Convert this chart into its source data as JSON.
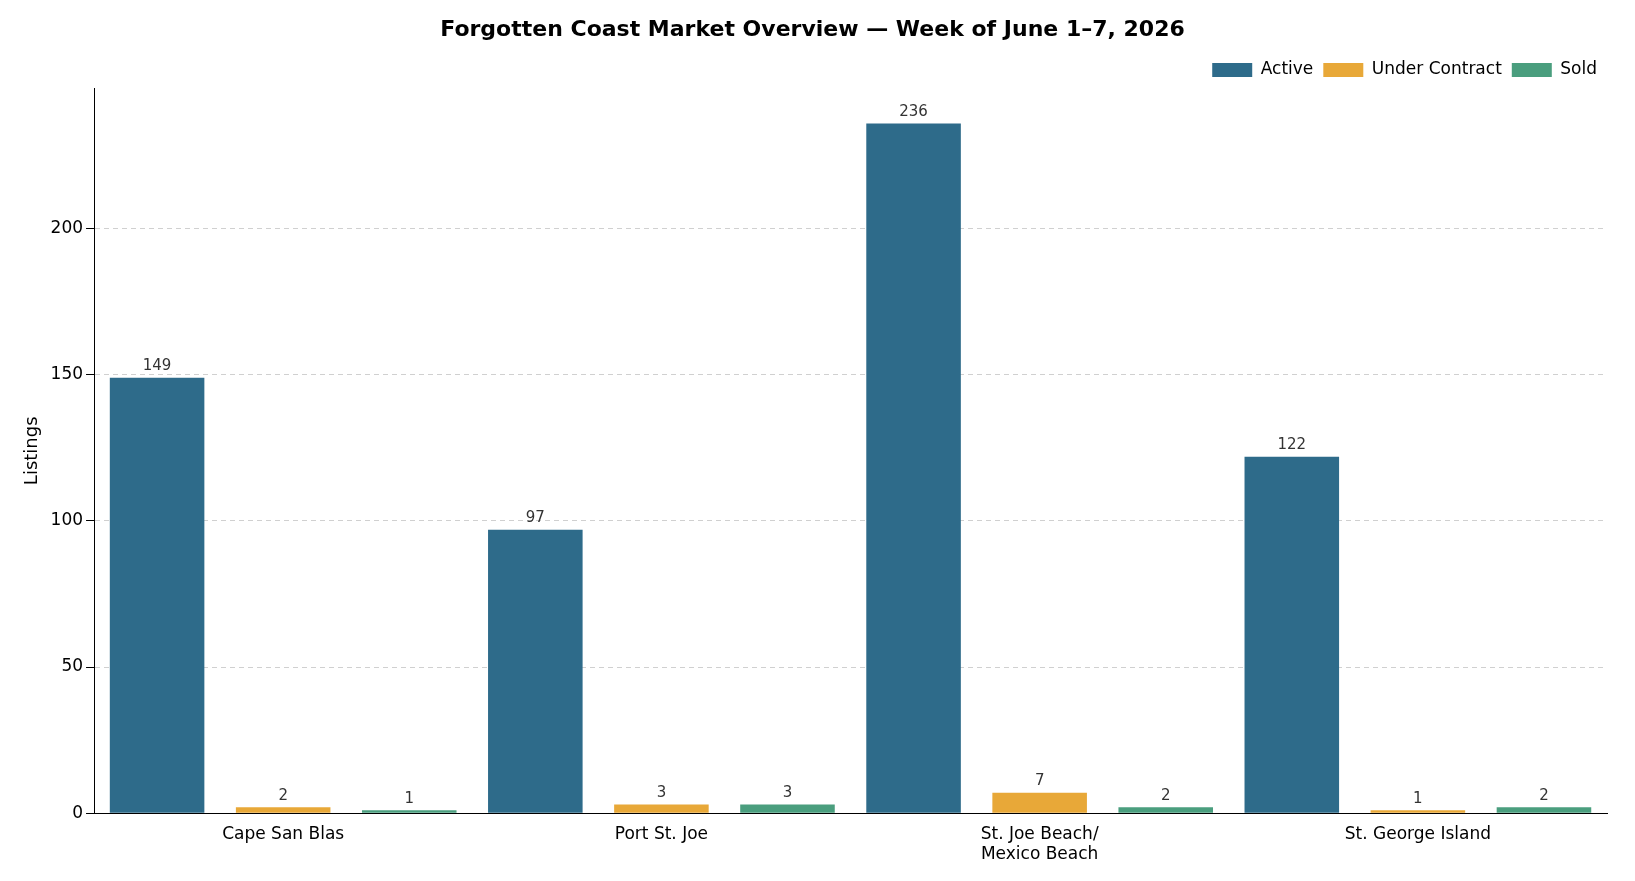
{
  "chart_data": {
    "type": "bar",
    "title": "Forgotten Coast Market Overview — Week of June 1–7, 2026",
    "ylabel": "Listings",
    "categories": [
      "Cape San Blas",
      "Port St. Joe",
      "St. Joe Beach/\nMexico Beach",
      "St. George Island"
    ],
    "series": [
      {
        "name": "Active",
        "color": "#2e6b8a",
        "values": [
          149,
          97,
          236,
          122
        ]
      },
      {
        "name": "Under Contract",
        "color": "#e8a838",
        "values": [
          2,
          3,
          7,
          1
        ]
      },
      {
        "name": "Sold",
        "color": "#4a9e7e",
        "values": [
          1,
          3,
          2,
          2
        ]
      }
    ],
    "ylim": [
      0,
      248
    ],
    "yticks": [
      0,
      50,
      100,
      150,
      200
    ],
    "grid": "y",
    "legend": "top right",
    "data_labels": true
  }
}
